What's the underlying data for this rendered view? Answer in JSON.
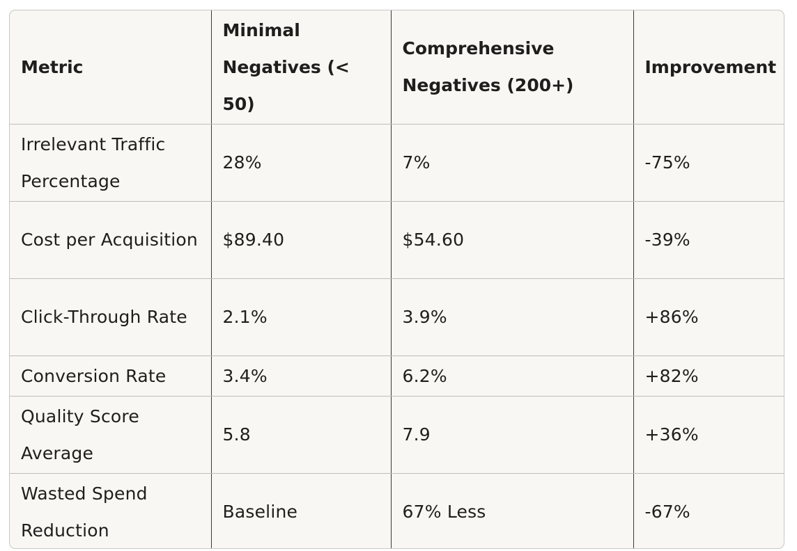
{
  "table": {
    "headers": [
      "Metric",
      "Minimal Negatives (< 50)",
      "Comprehensive Negatives (200+)",
      "Improvement"
    ],
    "rows": [
      [
        "Irrelevant Traffic Percentage",
        "28%",
        "7%",
        "-75%"
      ],
      [
        "Cost per Acquisition",
        "$89.40",
        "$54.60",
        "-39%"
      ],
      [
        "Click-Through Rate",
        "2.1%",
        "3.9%",
        "+86%"
      ],
      [
        "Conversion Rate",
        "3.4%",
        "6.2%",
        "+82%"
      ],
      [
        "Quality Score Average",
        "5.8",
        "7.9",
        "+36%"
      ],
      [
        "Wasted Spend Reduction",
        "Baseline",
        "67% Less",
        "-67%"
      ]
    ]
  }
}
